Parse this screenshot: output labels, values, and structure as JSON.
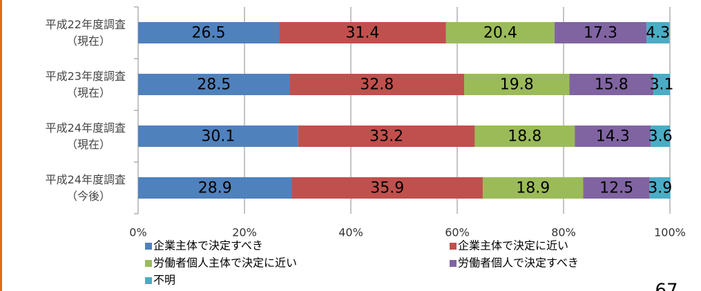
{
  "chart_data": {
    "type": "stacked-bar-horizontal",
    "categories": [
      [
        "平成22年度調査",
        "（現在）"
      ],
      [
        "平成23年度調査",
        "（現在）"
      ],
      [
        "平成24年度調査",
        "（現在）"
      ],
      [
        "平成24年度調査",
        "（今後）"
      ]
    ],
    "series": [
      {
        "name": "企業主体で決定すべき",
        "color": "#4f81bd",
        "values": [
          26.5,
          28.5,
          30.1,
          28.9
        ]
      },
      {
        "name": "企業主体で決定に近い",
        "color": "#c0504d",
        "values": [
          31.4,
          32.8,
          33.2,
          35.9
        ]
      },
      {
        "name": "労働者個人主体で決定に近い",
        "color": "#9bbb59",
        "values": [
          20.4,
          19.8,
          18.8,
          18.9
        ]
      },
      {
        "name": "労働者個人で決定すべき",
        "color": "#8064a2",
        "values": [
          17.3,
          15.8,
          14.3,
          12.5
        ]
      },
      {
        "name": "不明",
        "color": "#4bacc6",
        "values": [
          4.3,
          3.1,
          3.6,
          3.9
        ]
      }
    ],
    "xlim": [
      0,
      100
    ],
    "xticks": [
      {
        "value": 0,
        "label": "0%"
      },
      {
        "value": 20,
        "label": "20%"
      },
      {
        "value": 40,
        "label": "40%"
      },
      {
        "value": 60,
        "label": "60%"
      },
      {
        "value": 80,
        "label": "80%"
      },
      {
        "value": 100,
        "label": "100%"
      }
    ],
    "grid": true,
    "page_number": "67"
  }
}
